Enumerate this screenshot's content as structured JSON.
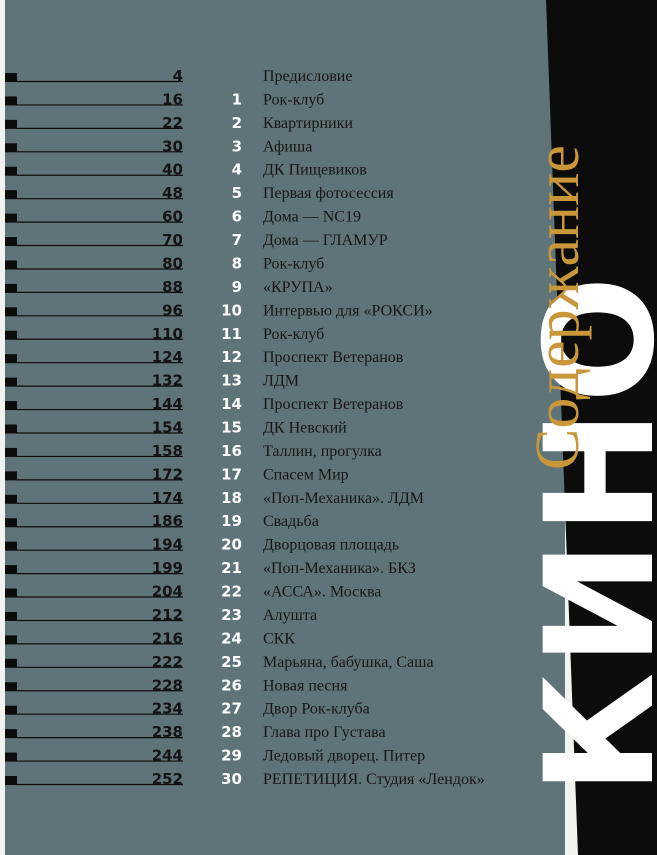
{
  "header": {
    "title": "Содержание",
    "band": "КИНО"
  },
  "entries": [
    {
      "page": 4,
      "title": "Предисловие"
    },
    {
      "page": 16,
      "number": 1,
      "title": "Рок-клуб"
    },
    {
      "page": 22,
      "number": 2,
      "title": "Квартирники"
    },
    {
      "page": 30,
      "number": 3,
      "title": "Афиша"
    },
    {
      "page": 40,
      "number": 4,
      "title": "ДК Пищевиков"
    },
    {
      "page": 48,
      "number": 5,
      "title": "Первая фотосессия"
    },
    {
      "page": 60,
      "number": 6,
      "title": "Дома — NC19"
    },
    {
      "page": 70,
      "number": 7,
      "title": "Дома — ГЛАМУР"
    },
    {
      "page": 80,
      "number": 8,
      "title": "Рок-клуб"
    },
    {
      "page": 88,
      "number": 9,
      "title": "«КРУПА»"
    },
    {
      "page": 96,
      "number": 10,
      "title": "Интервью для «РОКСИ»"
    },
    {
      "page": 110,
      "number": 11,
      "title": "Рок-клуб"
    },
    {
      "page": 124,
      "number": 12,
      "title": "Проспект Ветеранов"
    },
    {
      "page": 132,
      "number": 13,
      "title": "ЛДМ"
    },
    {
      "page": 144,
      "number": 14,
      "title": "Проспект Ветеранов"
    },
    {
      "page": 154,
      "number": 15,
      "title": "ДК Невский"
    },
    {
      "page": 158,
      "number": 16,
      "title": "Таллин, прогулка"
    },
    {
      "page": 172,
      "number": 17,
      "title": "Спасем Мир"
    },
    {
      "page": 174,
      "number": 18,
      "title": "«Поп-Механика». ЛДМ"
    },
    {
      "page": 186,
      "number": 19,
      "title": "Свадьба"
    },
    {
      "page": 194,
      "number": 20,
      "title": "Дворцовая площадь"
    },
    {
      "page": 199,
      "number": 21,
      "title": "«Поп-Механика». БКЗ"
    },
    {
      "page": 204,
      "number": 22,
      "title": "«АССА». Москва"
    },
    {
      "page": 212,
      "number": 23,
      "title": "Алушта"
    },
    {
      "page": 216,
      "number": 24,
      "title": "СКК"
    },
    {
      "page": 222,
      "number": 25,
      "title": "Марьяна, бабушка, Саша"
    },
    {
      "page": 228,
      "number": 26,
      "title": "Новая песня"
    },
    {
      "page": 234,
      "number": 27,
      "title": "Двор Рок-клуба"
    },
    {
      "page": 238,
      "number": 28,
      "title": "Глава про Густава"
    },
    {
      "page": 244,
      "number": 29,
      "title": "Ледовый дворец. Питер"
    },
    {
      "page": 252,
      "number": 30,
      "title": "РЕПЕТИЦИЯ. Студия «Лендок»"
    }
  ]
}
